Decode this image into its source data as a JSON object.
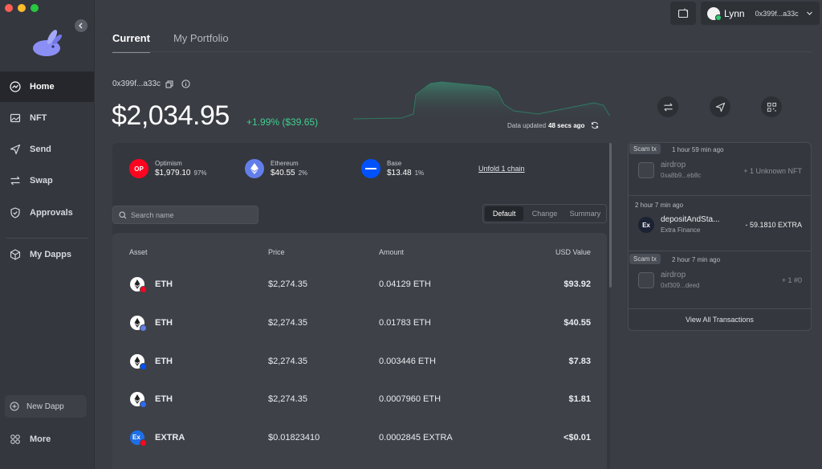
{
  "sidebar": {
    "items": [
      {
        "label": "Home",
        "icon": "home-icon"
      },
      {
        "label": "NFT",
        "icon": "image-icon"
      },
      {
        "label": "Send",
        "icon": "send-icon"
      },
      {
        "label": "Swap",
        "icon": "swap-icon"
      },
      {
        "label": "Approvals",
        "icon": "shield-icon"
      },
      {
        "label": "My Dapps",
        "icon": "cube-icon"
      }
    ],
    "new_dapp": "New Dapp",
    "more": "More"
  },
  "header": {
    "account_name": "Lynn",
    "account_address": "0x399f...a33c"
  },
  "tabs": [
    "Current",
    "My Portfolio"
  ],
  "balance": {
    "address": "0x399f...a33c",
    "total": "$2,034.95",
    "change": "+1.99% ($39.65)",
    "updated_prefix": "Data updated",
    "updated_value": "48 secs ago"
  },
  "chains": [
    {
      "name": "Optimism",
      "value": "$1,979.10",
      "pct": "97%",
      "symbol": "OP",
      "color": "#ff0420"
    },
    {
      "name": "Ethereum",
      "value": "$40.55",
      "pct": "2%",
      "symbol": "",
      "color": "#627eea"
    },
    {
      "name": "Base",
      "value": "$13.48",
      "pct": "1%",
      "symbol": "",
      "color": "#0052ff"
    }
  ],
  "unfold_label": "Unfold 1 chain",
  "search": {
    "placeholder": "Search name"
  },
  "view_modes": [
    "Default",
    "Change",
    "Summary"
  ],
  "table": {
    "headers": [
      "Asset",
      "Price",
      "Amount",
      "USD Value"
    ],
    "rows": [
      {
        "asset": "ETH",
        "price": "$2,274.35",
        "amount": "0.04129 ETH",
        "usd": "$93.92",
        "badge": "#ff0420"
      },
      {
        "asset": "ETH",
        "price": "$2,274.35",
        "amount": "0.01783 ETH",
        "usd": "$40.55",
        "badge": "#627eea"
      },
      {
        "asset": "ETH",
        "price": "$2,274.35",
        "amount": "0.003446 ETH",
        "usd": "$7.83",
        "badge": "#0052ff"
      },
      {
        "asset": "ETH",
        "price": "$2,274.35",
        "amount": "0.0007960 ETH",
        "usd": "$1.81",
        "badge": "#2d6bf4"
      },
      {
        "asset": "EXTRA",
        "price": "$0.01823410",
        "amount": "0.0002845 EXTRA",
        "usd": "<$0.01",
        "badge": "#ff0420"
      }
    ]
  },
  "transactions": {
    "items": [
      {
        "tag": "Scam tx",
        "time": "1 hour 59 min ago",
        "title": "airdrop",
        "sub": "0xa8b9...eb8c",
        "amount": "+ 1 Unknown NFT",
        "scam": true
      },
      {
        "tag": "",
        "time": "2 hour 7 min ago",
        "title": "depositAndSta...",
        "sub": "Extra Finance",
        "amount": "- 59.1810 EXTRA",
        "scam": false
      },
      {
        "tag": "Scam tx",
        "time": "2 hour 7 min ago",
        "title": "airdrop",
        "sub": "0xf309...deed",
        "amount": "+ 1 #0",
        "scam": true
      }
    ],
    "view_all": "View All Transactions"
  },
  "colors": {
    "positive": "#3ecf8e",
    "accent": "#7b7ff0"
  }
}
